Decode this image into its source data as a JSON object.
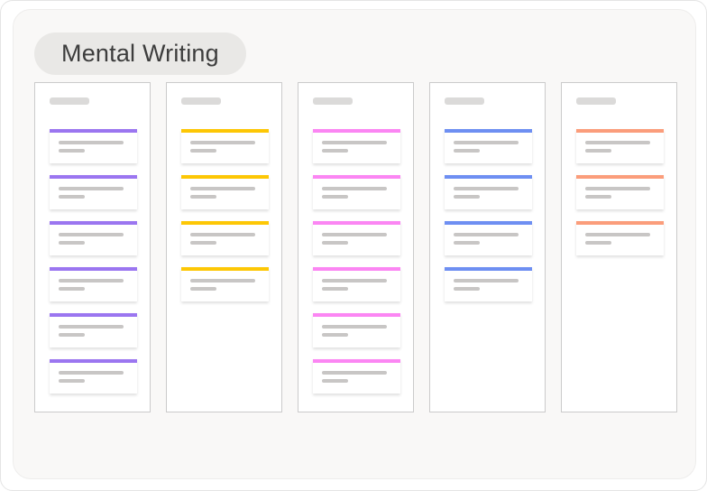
{
  "page": {
    "outer_background": "#ffffff",
    "panel_background": "#f9f8f7",
    "panel_border_color": "#eeedec"
  },
  "header": {
    "title": "Mental Writing",
    "pill_background": "#e9e8e6",
    "title_color": "#3d3d3d"
  },
  "board": {
    "column_border_color": "#cbcbcb",
    "placeholder_color": "#c8c6c5",
    "column_header_placeholder_color": "#dbdad9",
    "card_placeholder_lines_per_card": 2,
    "columns": [
      {
        "id": "column-1",
        "accent_name": "purple",
        "accent_color": "#9b76f0",
        "cards": 6
      },
      {
        "id": "column-2",
        "accent_name": "yellow",
        "accent_color": "#fdc705",
        "cards": 4
      },
      {
        "id": "column-3",
        "accent_name": "pink",
        "accent_color": "#fb86f3",
        "cards": 6
      },
      {
        "id": "column-4",
        "accent_name": "blue",
        "accent_color": "#6e8ff2",
        "cards": 4
      },
      {
        "id": "column-5",
        "accent_name": "orange",
        "accent_color": "#fb9d7b",
        "cards": 3
      }
    ]
  }
}
